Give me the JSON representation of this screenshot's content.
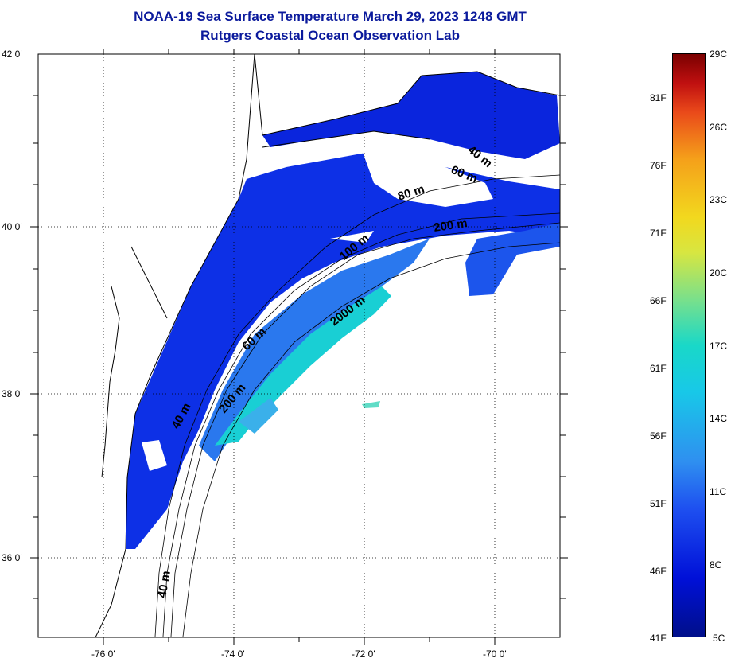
{
  "title": {
    "line1": "NOAA-19 Sea Surface Temperature March 29, 2023 1248 GMT",
    "line2": "Rutgers Coastal Ocean Observation Lab"
  },
  "axes": {
    "lat_labels": [
      "42 0'",
      "40 0'",
      "38 0'",
      "36 0'"
    ],
    "lon_labels": [
      "-76 0'",
      "-74 0'",
      "-72 0'",
      "-70 0'"
    ]
  },
  "isobath_labels": [
    "40 m",
    "60 m",
    "80 m",
    "200 m",
    "100 m",
    "2000 m",
    "60 m",
    "40 m",
    "200 m",
    "40 m"
  ],
  "colorbar": {
    "fahrenheit": [
      "81F",
      "76F",
      "71F",
      "66F",
      "61F",
      "56F",
      "51F",
      "46F",
      "41F"
    ],
    "celsius": [
      "29C",
      "26C",
      "23C",
      "20C",
      "17C",
      "14C",
      "11C",
      "8C",
      "5C"
    ]
  },
  "colors": {
    "title": "#0b1a9c",
    "cold": "#0a22e0",
    "mid": "#2f8ff0",
    "warm": "#19d8c8"
  }
}
